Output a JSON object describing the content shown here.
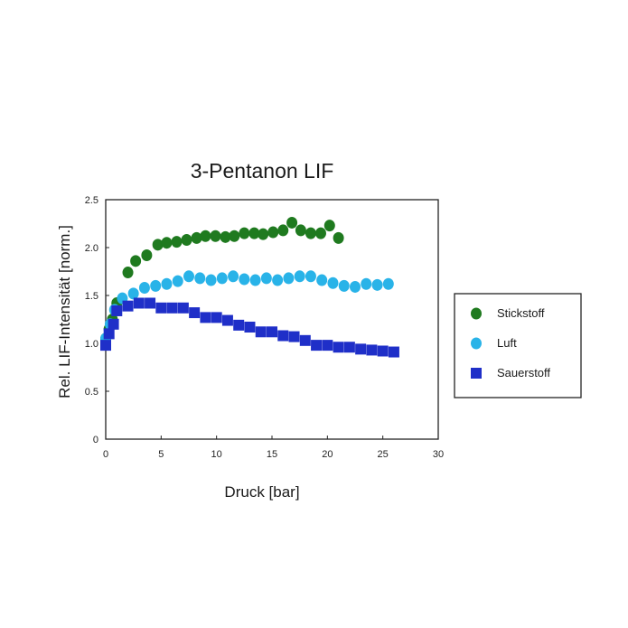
{
  "chart_data": {
    "type": "scatter",
    "title": "3-Pentanon LIF",
    "xlabel": "Druck [bar]",
    "ylabel": "Rel. LIF-Intensität [norm.]",
    "xlim": [
      0,
      30
    ],
    "ylim": [
      0,
      2.5
    ],
    "xticks": [
      "0",
      "5",
      "10",
      "15",
      "20",
      "25",
      "30"
    ],
    "yticks": [
      "0",
      "0.5",
      "1.0",
      "1.5",
      "2.0",
      "2.5"
    ],
    "legend_position": "right",
    "series": [
      {
        "name": "Stickstoff",
        "marker": "circle",
        "color": "#1f7a1f",
        "x": [
          0,
          0.3,
          0.6,
          1,
          2,
          2.7,
          3.7,
          4.7,
          5.5,
          6.4,
          7.3,
          8.2,
          9,
          9.9,
          10.8,
          11.6,
          12.5,
          13.4,
          14.2,
          15.1,
          16,
          16.8,
          17.6,
          18.5,
          19.4,
          20.2,
          21
        ],
        "y": [
          1.05,
          1.15,
          1.25,
          1.42,
          1.74,
          1.86,
          1.92,
          2.03,
          2.05,
          2.06,
          2.08,
          2.1,
          2.12,
          2.12,
          2.11,
          2.12,
          2.15,
          2.15,
          2.14,
          2.16,
          2.18,
          2.26,
          2.18,
          2.15,
          2.15,
          2.23,
          2.1
        ]
      },
      {
        "name": "Luft",
        "marker": "circle",
        "color": "#29b3e8",
        "x": [
          0,
          0.4,
          0.8,
          1.5,
          2.5,
          3.5,
          4.5,
          5.5,
          6.5,
          7.5,
          8.5,
          9.5,
          10.5,
          11.5,
          12.5,
          13.5,
          14.5,
          15.5,
          16.5,
          17.5,
          18.5,
          19.5,
          20.5,
          21.5,
          22.5,
          23.5,
          24.5,
          25.5
        ],
        "y": [
          1.05,
          1.2,
          1.35,
          1.47,
          1.52,
          1.58,
          1.6,
          1.62,
          1.65,
          1.7,
          1.68,
          1.66,
          1.68,
          1.7,
          1.67,
          1.66,
          1.68,
          1.66,
          1.68,
          1.7,
          1.7,
          1.66,
          1.63,
          1.6,
          1.59,
          1.62,
          1.61,
          1.62
        ]
      },
      {
        "name": "Sauerstoff",
        "marker": "square",
        "color": "#1f2fc8",
        "x": [
          0,
          0.3,
          0.7,
          1,
          2,
          3,
          4,
          5,
          6,
          7,
          8,
          9,
          10,
          11,
          12,
          13,
          14,
          15,
          16,
          17,
          18,
          19,
          20,
          21,
          22,
          23,
          24,
          25,
          26
        ],
        "y": [
          0.98,
          1.1,
          1.2,
          1.34,
          1.39,
          1.42,
          1.42,
          1.37,
          1.37,
          1.37,
          1.32,
          1.27,
          1.27,
          1.24,
          1.19,
          1.17,
          1.12,
          1.12,
          1.08,
          1.07,
          1.03,
          0.98,
          0.98,
          0.96,
          0.96,
          0.94,
          0.93,
          0.92,
          0.91
        ]
      }
    ]
  }
}
